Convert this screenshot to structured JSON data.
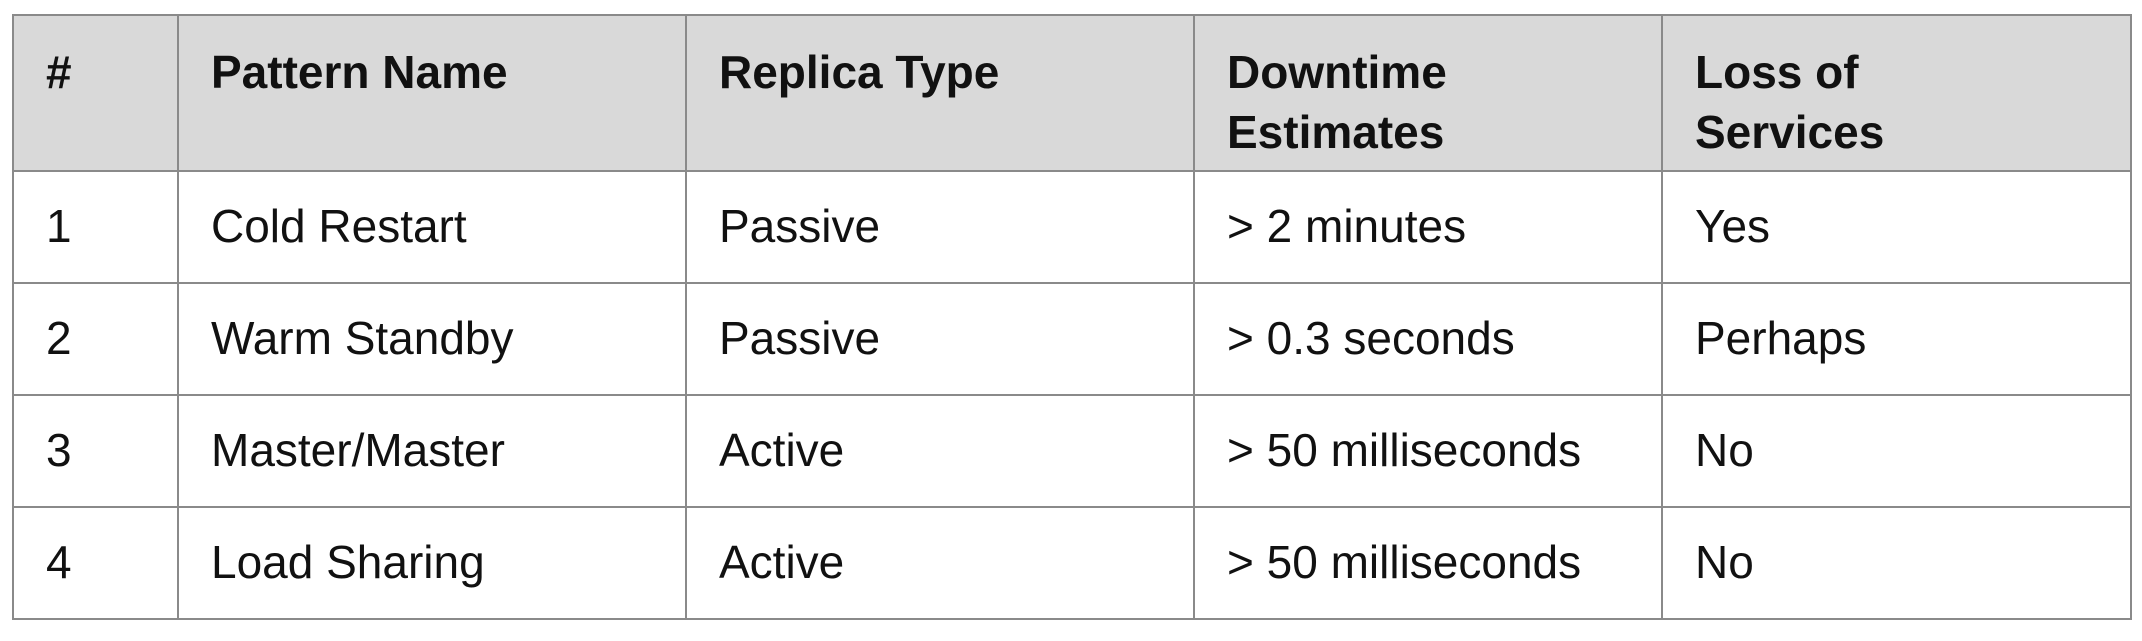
{
  "table": {
    "headers": [
      [
        "#"
      ],
      [
        "Pattern Name"
      ],
      [
        "Replica Type"
      ],
      [
        "Downtime",
        "Estimates"
      ],
      [
        "Loss of",
        "Services"
      ]
    ],
    "rows": [
      [
        "1",
        "Cold Restart",
        "Passive",
        "> 2 minutes",
        "Yes"
      ],
      [
        "2",
        "Warm Standby",
        "Passive",
        "> 0.3 seconds",
        "Perhaps"
      ],
      [
        "3",
        "Master/Master",
        "Active",
        "> 50 milliseconds",
        "No"
      ],
      [
        "4",
        "Load Sharing",
        "Active",
        "> 50 milliseconds",
        "No"
      ]
    ]
  }
}
